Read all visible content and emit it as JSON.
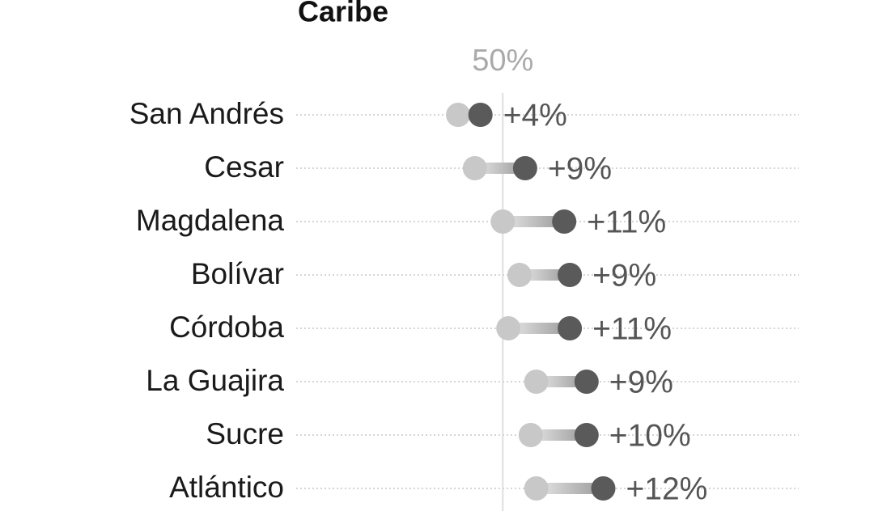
{
  "chart_data": {
    "type": "dumbbell",
    "title": "Caribe",
    "categories": [
      "San Andrés",
      "Cesar",
      "Magdalena",
      "Bolívar",
      "Córdoba",
      "La Guajira",
      "Sucre",
      "Atlántico"
    ],
    "start": [
      42,
      45,
      50,
      53,
      51,
      56,
      55,
      56
    ],
    "end": [
      46,
      54,
      61,
      62,
      62,
      65,
      65,
      68
    ],
    "change_labels": [
      "+4%",
      "+9%",
      "+11%",
      "+9%",
      "+11%",
      "+9%",
      "+10%",
      "+12%"
    ],
    "start_color": "#c8c8c8",
    "end_color": "#5a5a5a",
    "reference": {
      "value": 50,
      "label": "50%"
    },
    "xlim": [
      13,
      103
    ]
  }
}
